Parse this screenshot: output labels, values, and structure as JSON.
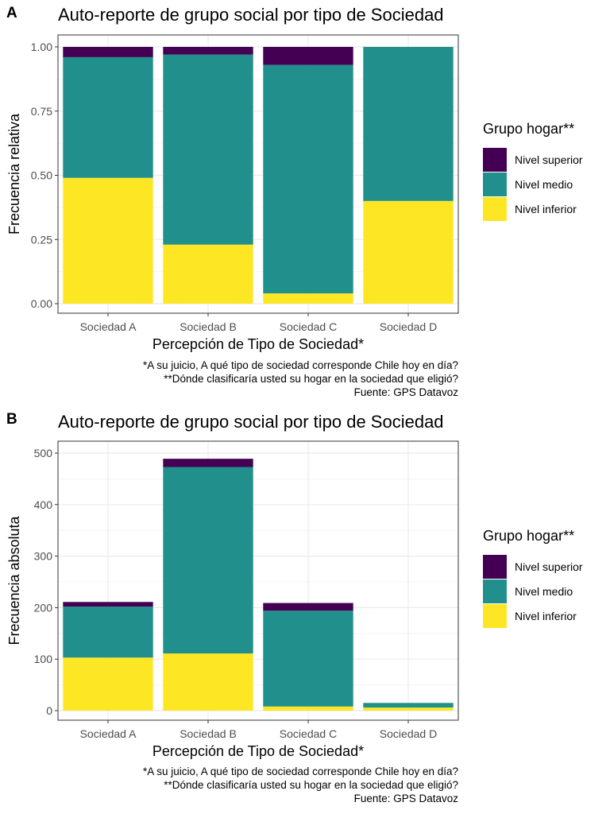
{
  "chart_data": [
    {
      "panel": "A",
      "type": "bar",
      "stacked": true,
      "title": "Auto-reporte de grupo social por tipo de Sociedad",
      "xlabel": "Percepción de Tipo de Sociedad*",
      "ylabel": "Frecuencia relativa",
      "categories": [
        "Sociedad A",
        "Sociedad B",
        "Sociedad C",
        "Sociedad D"
      ],
      "series": [
        {
          "name": "Nivel inferior",
          "color": "#FDE725",
          "values": [
            0.49,
            0.23,
            0.04,
            0.4
          ]
        },
        {
          "name": "Nivel medio",
          "color": "#21908C",
          "values": [
            0.47,
            0.74,
            0.89,
            0.6
          ]
        },
        {
          "name": "Nivel superior",
          "color": "#440154",
          "values": [
            0.04,
            0.03,
            0.07,
            0.0
          ]
        }
      ],
      "ylim": [
        0,
        1
      ],
      "yticks": [
        0,
        0.25,
        0.5,
        0.75,
        1
      ],
      "ytick_labels": [
        "0.00",
        "0.25",
        "0.50",
        "0.75",
        "1.00"
      ],
      "legend_title": "Grupo hogar**",
      "legend_order": [
        "Nivel superior",
        "Nivel medio",
        "Nivel inferior"
      ],
      "legend_position": "right",
      "grid": true,
      "caption": [
        "*A su juicio, A qué tipo de sociedad corresponde Chile hoy en día?",
        "**Dónde clasificaría usted su hogar en la sociedad que eligió?",
        "Fuente: GPS Datavoz"
      ]
    },
    {
      "panel": "B",
      "type": "bar",
      "stacked": true,
      "title": "Auto-reporte de grupo social por tipo de Sociedad",
      "xlabel": "Percepción de Tipo de Sociedad*",
      "ylabel": "Frecuencia absoluta",
      "categories": [
        "Sociedad A",
        "Sociedad B",
        "Sociedad C",
        "Sociedad D"
      ],
      "series": [
        {
          "name": "Nivel inferior",
          "color": "#FDE725",
          "values": [
            103,
            111,
            8,
            6
          ]
        },
        {
          "name": "Nivel medio",
          "color": "#21908C",
          "values": [
            99,
            362,
            186,
            9
          ]
        },
        {
          "name": "Nivel superior",
          "color": "#440154",
          "values": [
            9,
            16,
            15,
            0
          ]
        }
      ],
      "ylim": [
        0,
        500
      ],
      "yticks": [
        0,
        100,
        200,
        300,
        400,
        500
      ],
      "ytick_labels": [
        "0",
        "100",
        "200",
        "300",
        "400",
        "500"
      ],
      "legend_title": "Grupo hogar**",
      "legend_order": [
        "Nivel superior",
        "Nivel medio",
        "Nivel inferior"
      ],
      "legend_position": "right",
      "grid": true,
      "caption": [
        "*A su juicio, A qué tipo de sociedad corresponde Chile hoy en día?",
        "**Dónde clasificaría usted su hogar en la sociedad que eligió?",
        "Fuente: GPS Datavoz"
      ]
    }
  ]
}
